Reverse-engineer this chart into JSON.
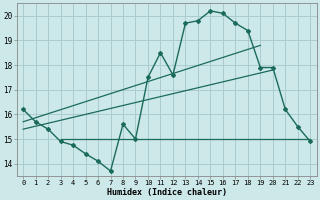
{
  "xlabel": "Humidex (Indice chaleur)",
  "bg_color": "#cce8e8",
  "grid_color": "#aacccc",
  "line_color": "#1a6b5a",
  "xlim": [
    -0.5,
    23.5
  ],
  "ylim": [
    13.5,
    20.5
  ],
  "xticks": [
    0,
    1,
    2,
    3,
    4,
    5,
    6,
    7,
    8,
    9,
    10,
    11,
    12,
    13,
    14,
    15,
    16,
    17,
    18,
    19,
    20,
    21,
    22,
    23
  ],
  "yticks": [
    14,
    15,
    16,
    17,
    18,
    19,
    20
  ],
  "line1_x": [
    0,
    1,
    2,
    3,
    4,
    5,
    6,
    7,
    8,
    9,
    10,
    11,
    12,
    13,
    14,
    15,
    16,
    17,
    18,
    19,
    20,
    21,
    22,
    23
  ],
  "line1_y": [
    16.2,
    15.7,
    15.4,
    14.9,
    14.75,
    14.4,
    14.1,
    13.7,
    15.6,
    15.0,
    17.5,
    18.5,
    17.6,
    19.7,
    19.8,
    20.2,
    20.1,
    19.7,
    19.4,
    17.9,
    17.9,
    16.2,
    15.5,
    14.9
  ],
  "line2_x": [
    0,
    19
  ],
  "line2_y": [
    15.7,
    18.8
  ],
  "line3_x": [
    0,
    20
  ],
  "line3_y": [
    15.4,
    17.8
  ],
  "hline_y": 15.0,
  "hline_xstart": 3,
  "hline_xend": 23
}
